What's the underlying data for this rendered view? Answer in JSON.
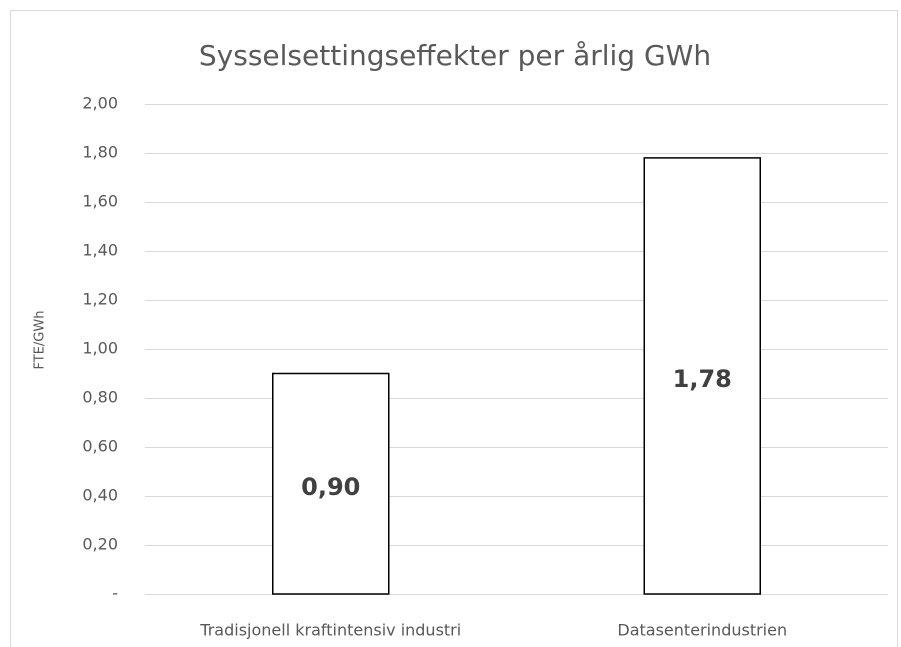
{
  "chart_data": {
    "type": "bar",
    "title": "Sysselsettingseffekter per årlig GWh",
    "y_label": "FTE/GWh",
    "categories": [
      "Tradisjonell kraftintensiv industri",
      "Datasenterindustrien"
    ],
    "values": [
      0.9,
      1.78
    ],
    "value_labels": [
      "0,90",
      "1,78"
    ],
    "color": "#ffffff",
    "ylim": [
      0,
      2
    ],
    "yticks": [
      {
        "value": 0,
        "label": "-"
      },
      {
        "value": 0.2,
        "label": "0,20"
      },
      {
        "value": 0.4,
        "label": "0,40"
      },
      {
        "value": 0.6,
        "label": "0,60"
      },
      {
        "value": 0.8,
        "label": "0,80"
      },
      {
        "value": 1,
        "label": "1,00"
      },
      {
        "value": 1.2,
        "label": "1,20"
      },
      {
        "value": 1.4,
        "label": "1,40"
      },
      {
        "value": 1.6,
        "label": "1,60"
      },
      {
        "value": 1.8,
        "label": "1,80"
      },
      {
        "value": 2,
        "label": "2,00"
      }
    ],
    "grid": true
  }
}
